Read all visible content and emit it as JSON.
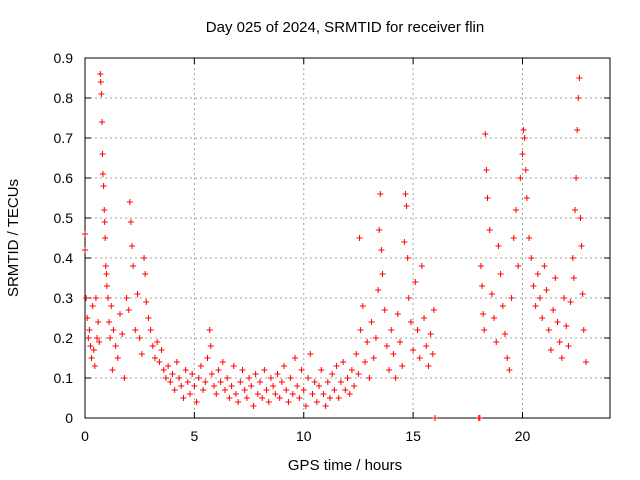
{
  "chart_data": {
    "type": "scatter",
    "title": "Day 025 of 2024, SRMTID for receiver flin",
    "xlabel": "GPS time / hours",
    "ylabel": "SRMTID / TECUs",
    "xlim": [
      0,
      24
    ],
    "ylim": [
      0,
      0.9
    ],
    "xticks": [
      0,
      5,
      10,
      15,
      20
    ],
    "xtick_labels": [
      "0",
      "5",
      "10",
      "15",
      "20"
    ],
    "yticks": [
      0,
      0.1,
      0.2,
      0.3,
      0.4,
      0.5,
      0.6,
      0.7,
      0.8,
      0.9
    ],
    "ytick_labels": [
      "0",
      "0.1",
      "0.2",
      "0.3",
      "0.4",
      "0.5",
      "0.6",
      "0.7",
      "0.8",
      "0.9"
    ],
    "grid": true,
    "marker": "+",
    "marker_color": "#ff0000",
    "series": [
      {
        "name": "SRMTID",
        "points": [
          [
            0.0,
            0.46
          ],
          [
            0.0,
            0.42
          ],
          [
            0.05,
            0.3
          ],
          [
            0.1,
            0.25
          ],
          [
            0.15,
            0.2
          ],
          [
            0.2,
            0.22
          ],
          [
            0.25,
            0.18
          ],
          [
            0.3,
            0.15
          ],
          [
            0.35,
            0.28
          ],
          [
            0.4,
            0.17
          ],
          [
            0.45,
            0.13
          ],
          [
            0.5,
            0.3
          ],
          [
            0.55,
            0.2
          ],
          [
            0.6,
            0.24
          ],
          [
            0.65,
            0.19
          ],
          [
            0.7,
            0.86
          ],
          [
            0.72,
            0.84
          ],
          [
            0.75,
            0.81
          ],
          [
            0.78,
            0.74
          ],
          [
            0.8,
            0.66
          ],
          [
            0.82,
            0.61
          ],
          [
            0.85,
            0.58
          ],
          [
            0.88,
            0.52
          ],
          [
            0.9,
            0.49
          ],
          [
            0.92,
            0.45
          ],
          [
            0.95,
            0.38
          ],
          [
            0.98,
            0.36
          ],
          [
            1.0,
            0.33
          ],
          [
            1.05,
            0.3
          ],
          [
            1.1,
            0.24
          ],
          [
            1.15,
            0.2
          ],
          [
            1.2,
            0.28
          ],
          [
            1.25,
            0.12
          ],
          [
            1.3,
            0.22
          ],
          [
            1.4,
            0.18
          ],
          [
            1.5,
            0.15
          ],
          [
            1.6,
            0.26
          ],
          [
            1.7,
            0.21
          ],
          [
            1.8,
            0.1
          ],
          [
            1.9,
            0.3
          ],
          [
            2.0,
            0.27
          ],
          [
            2.05,
            0.54
          ],
          [
            2.1,
            0.49
          ],
          [
            2.15,
            0.43
          ],
          [
            2.2,
            0.38
          ],
          [
            2.3,
            0.22
          ],
          [
            2.4,
            0.31
          ],
          [
            2.5,
            0.2
          ],
          [
            2.6,
            0.16
          ],
          [
            2.7,
            0.4
          ],
          [
            2.75,
            0.36
          ],
          [
            2.8,
            0.29
          ],
          [
            2.9,
            0.25
          ],
          [
            3.0,
            0.22
          ],
          [
            3.1,
            0.18
          ],
          [
            3.2,
            0.15
          ],
          [
            3.3,
            0.19
          ],
          [
            3.4,
            0.14
          ],
          [
            3.5,
            0.17
          ],
          [
            3.6,
            0.12
          ],
          [
            3.7,
            0.1
          ],
          [
            3.8,
            0.13
          ],
          [
            3.9,
            0.09
          ],
          [
            4.0,
            0.11
          ],
          [
            4.1,
            0.07
          ],
          [
            4.2,
            0.14
          ],
          [
            4.3,
            0.1
          ],
          [
            4.4,
            0.08
          ],
          [
            4.5,
            0.05
          ],
          [
            4.6,
            0.12
          ],
          [
            4.7,
            0.09
          ],
          [
            4.8,
            0.06
          ],
          [
            4.9,
            0.11
          ],
          [
            5.0,
            0.08
          ],
          [
            5.1,
            0.04
          ],
          [
            5.2,
            0.1
          ],
          [
            5.3,
            0.13
          ],
          [
            5.4,
            0.07
          ],
          [
            5.5,
            0.09
          ],
          [
            5.6,
            0.15
          ],
          [
            5.7,
            0.22
          ],
          [
            5.75,
            0.18
          ],
          [
            5.8,
            0.11
          ],
          [
            5.9,
            0.08
          ],
          [
            6.0,
            0.06
          ],
          [
            6.1,
            0.12
          ],
          [
            6.2,
            0.09
          ],
          [
            6.3,
            0.14
          ],
          [
            6.4,
            0.07
          ],
          [
            6.5,
            0.1
          ],
          [
            6.6,
            0.05
          ],
          [
            6.7,
            0.08
          ],
          [
            6.8,
            0.13
          ],
          [
            6.9,
            0.06
          ],
          [
            7.0,
            0.04
          ],
          [
            7.1,
            0.09
          ],
          [
            7.2,
            0.12
          ],
          [
            7.3,
            0.07
          ],
          [
            7.4,
            0.05
          ],
          [
            7.5,
            0.1
          ],
          [
            7.6,
            0.08
          ],
          [
            7.7,
            0.03
          ],
          [
            7.8,
            0.11
          ],
          [
            7.9,
            0.06
          ],
          [
            8.0,
            0.09
          ],
          [
            8.1,
            0.05
          ],
          [
            8.2,
            0.12
          ],
          [
            8.3,
            0.07
          ],
          [
            8.4,
            0.04
          ],
          [
            8.5,
            0.1
          ],
          [
            8.6,
            0.08
          ],
          [
            8.7,
            0.06
          ],
          [
            8.8,
            0.11
          ],
          [
            8.9,
            0.05
          ],
          [
            9.0,
            0.09
          ],
          [
            9.1,
            0.13
          ],
          [
            9.2,
            0.07
          ],
          [
            9.3,
            0.04
          ],
          [
            9.4,
            0.1
          ],
          [
            9.5,
            0.06
          ],
          [
            9.6,
            0.15
          ],
          [
            9.7,
            0.08
          ],
          [
            9.8,
            0.05
          ],
          [
            9.9,
            0.12
          ],
          [
            10.0,
            0.07
          ],
          [
            10.1,
            0.03
          ],
          [
            10.2,
            0.1
          ],
          [
            10.3,
            0.16
          ],
          [
            10.4,
            0.06
          ],
          [
            10.5,
            0.09
          ],
          [
            10.6,
            0.04
          ],
          [
            10.7,
            0.08
          ],
          [
            10.8,
            0.12
          ],
          [
            10.9,
            0.06
          ],
          [
            11.0,
            0.03
          ],
          [
            11.1,
            0.09
          ],
          [
            11.2,
            0.05
          ],
          [
            11.3,
            0.11
          ],
          [
            11.4,
            0.07
          ],
          [
            11.5,
            0.13
          ],
          [
            11.6,
            0.05
          ],
          [
            11.7,
            0.09
          ],
          [
            11.8,
            0.14
          ],
          [
            11.9,
            0.07
          ],
          [
            12.0,
            0.1
          ],
          [
            12.1,
            0.06
          ],
          [
            12.2,
            0.12
          ],
          [
            12.3,
            0.08
          ],
          [
            12.4,
            0.16
          ],
          [
            12.5,
            0.11
          ],
          [
            12.55,
            0.45
          ],
          [
            12.6,
            0.22
          ],
          [
            12.7,
            0.28
          ],
          [
            12.8,
            0.14
          ],
          [
            12.9,
            0.19
          ],
          [
            13.0,
            0.1
          ],
          [
            13.1,
            0.24
          ],
          [
            13.2,
            0.15
          ],
          [
            13.3,
            0.2
          ],
          [
            13.4,
            0.32
          ],
          [
            13.45,
            0.47
          ],
          [
            13.5,
            0.56
          ],
          [
            13.55,
            0.42
          ],
          [
            13.6,
            0.36
          ],
          [
            13.7,
            0.27
          ],
          [
            13.8,
            0.18
          ],
          [
            13.9,
            0.12
          ],
          [
            14.0,
            0.22
          ],
          [
            14.1,
            0.16
          ],
          [
            14.2,
            0.1
          ],
          [
            14.3,
            0.26
          ],
          [
            14.4,
            0.19
          ],
          [
            14.5,
            0.13
          ],
          [
            14.6,
            0.44
          ],
          [
            14.65,
            0.56
          ],
          [
            14.7,
            0.53
          ],
          [
            14.75,
            0.4
          ],
          [
            14.8,
            0.3
          ],
          [
            14.9,
            0.24
          ],
          [
            15.0,
            0.17
          ],
          [
            15.1,
            0.34
          ],
          [
            15.2,
            0.22
          ],
          [
            15.3,
            0.15
          ],
          [
            15.4,
            0.38
          ],
          [
            15.5,
            0.25
          ],
          [
            15.6,
            0.18
          ],
          [
            15.7,
            0.13
          ],
          [
            15.8,
            0.21
          ],
          [
            15.9,
            0.16
          ],
          [
            15.95,
            0.27
          ],
          [
            16.0,
            0.0
          ],
          [
            18.0,
            0.0
          ],
          [
            18.05,
            0.0
          ],
          [
            18.1,
            0.38
          ],
          [
            18.15,
            0.33
          ],
          [
            18.2,
            0.26
          ],
          [
            18.25,
            0.22
          ],
          [
            18.3,
            0.71
          ],
          [
            18.35,
            0.62
          ],
          [
            18.4,
            0.55
          ],
          [
            18.5,
            0.47
          ],
          [
            18.6,
            0.31
          ],
          [
            18.7,
            0.25
          ],
          [
            18.8,
            0.19
          ],
          [
            18.9,
            0.43
          ],
          [
            19.0,
            0.36
          ],
          [
            19.1,
            0.28
          ],
          [
            19.2,
            0.21
          ],
          [
            19.3,
            0.15
          ],
          [
            19.4,
            0.12
          ],
          [
            19.5,
            0.3
          ],
          [
            19.6,
            0.45
          ],
          [
            19.7,
            0.52
          ],
          [
            19.8,
            0.38
          ],
          [
            19.9,
            0.6
          ],
          [
            20.0,
            0.66
          ],
          [
            20.05,
            0.72
          ],
          [
            20.1,
            0.7
          ],
          [
            20.15,
            0.62
          ],
          [
            20.2,
            0.55
          ],
          [
            20.3,
            0.45
          ],
          [
            20.4,
            0.4
          ],
          [
            20.5,
            0.33
          ],
          [
            20.6,
            0.28
          ],
          [
            20.7,
            0.36
          ],
          [
            20.8,
            0.3
          ],
          [
            20.9,
            0.25
          ],
          [
            21.0,
            0.38
          ],
          [
            21.1,
            0.32
          ],
          [
            21.2,
            0.22
          ],
          [
            21.3,
            0.17
          ],
          [
            21.4,
            0.27
          ],
          [
            21.5,
            0.35
          ],
          [
            21.6,
            0.24
          ],
          [
            21.7,
            0.19
          ],
          [
            21.8,
            0.15
          ],
          [
            21.9,
            0.3
          ],
          [
            22.0,
            0.23
          ],
          [
            22.1,
            0.18
          ],
          [
            22.2,
            0.29
          ],
          [
            22.3,
            0.4
          ],
          [
            22.35,
            0.35
          ],
          [
            22.4,
            0.52
          ],
          [
            22.45,
            0.6
          ],
          [
            22.5,
            0.72
          ],
          [
            22.55,
            0.8
          ],
          [
            22.6,
            0.85
          ],
          [
            22.65,
            0.5
          ],
          [
            22.7,
            0.43
          ],
          [
            22.75,
            0.31
          ],
          [
            22.8,
            0.22
          ],
          [
            22.9,
            0.14
          ]
        ]
      }
    ]
  }
}
